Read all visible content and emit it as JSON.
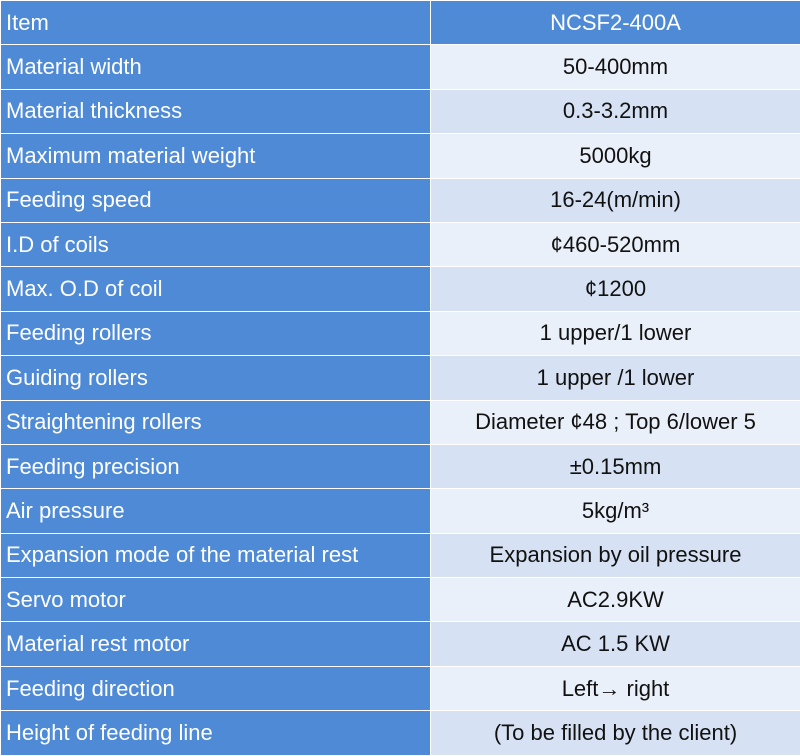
{
  "header": {
    "label": "Item",
    "value": "NCSF2-400A"
  },
  "rows": [
    {
      "label": "Material width",
      "value": "50-400mm"
    },
    {
      "label": "Material thickness",
      "value": "0.3-3.2mm"
    },
    {
      "label": "Maximum material weight",
      "value": "5000kg"
    },
    {
      "label": "Feeding speed",
      "value": "16-24(m/min)"
    },
    {
      "label": "I.D of coils",
      "value": "¢460-520mm"
    },
    {
      "label": "Max. O.D of coil",
      "value": "¢1200"
    },
    {
      "label": "Feeding rollers",
      "value": "1 upper/1 lower"
    },
    {
      "label": "Guiding rollers",
      "value": "1 upper /1 lower"
    },
    {
      "label": "Straightening rollers",
      "value": "Diameter ¢48 ; Top 6/lower 5"
    },
    {
      "label": "Feeding precision",
      "value": "±0.15mm"
    },
    {
      "label": "Air pressure",
      "value": "5kg/m³"
    },
    {
      "label": "Expansion mode of the material rest",
      "value": "Expansion by oil pressure"
    },
    {
      "label": "Servo motor",
      "value": "AC2.9KW"
    },
    {
      "label": "Material rest motor",
      "value": "AC 1.5 KW"
    },
    {
      "label": "Feeding direction",
      "value": "Left→ right"
    },
    {
      "label": "Height of feeding line",
      "value": "(To be filled by the client)"
    }
  ],
  "colors": {
    "label_bg": "#4f8ad6",
    "value_bg_light": "#eaf0f9",
    "value_bg_dark": "#d6e2f3"
  }
}
